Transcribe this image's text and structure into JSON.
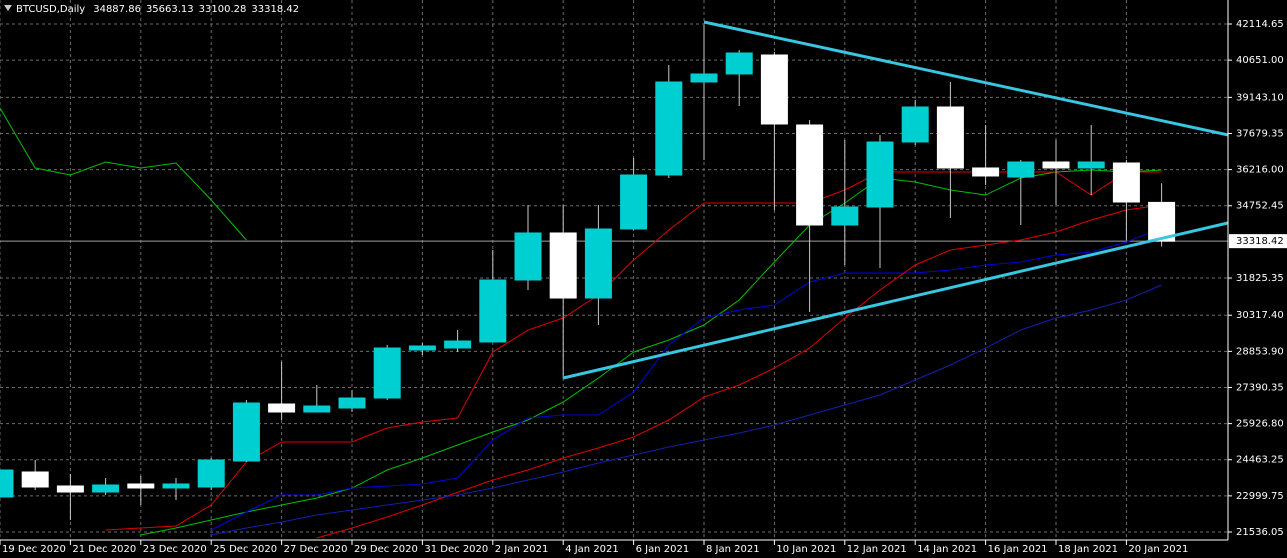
{
  "chart_data": {
    "type": "candlestick",
    "symbol": "BTCUSD,Daily",
    "header_values": [
      34887.86,
      35663.13,
      33100.28,
      33318.42
    ],
    "categories": [
      "19 Dec 2020",
      null,
      "21 Dec 2020",
      null,
      "23 Dec 2020",
      null,
      "25 Dec 2020",
      null,
      "27 Dec 2020",
      null,
      "29 Dec 2020",
      null,
      "31 Dec 2020",
      null,
      "2 Jan 2021",
      null,
      "4 Jan 2021",
      null,
      "6 Jan 2021",
      null,
      "8 Jan 2021",
      null,
      "10 Jan 2021",
      null,
      "12 Jan 2021",
      null,
      "14 Jan 2021",
      null,
      "16 Jan 2021",
      null,
      "18 Jan 2021",
      null,
      "20 Jan 2021",
      null
    ],
    "open": [
      22954,
      23967,
      23400,
      23156,
      23481,
      23319,
      23359,
      24412,
      26721,
      26397,
      26559,
      26964,
      28909,
      28990,
      29233,
      31745,
      33649,
      31015,
      33811,
      35998,
      39766,
      40090,
      40859,
      38024,
      33973,
      34702,
      37335,
      38753,
      36282,
      35917,
      36525,
      36282,
      36484,
      34887.86
    ],
    "high": [
      24048,
      24453,
      23886,
      23724,
      23805,
      23724,
      24534,
      26883,
      28423,
      27491,
      27288,
      29112,
      29192,
      29719,
      32960,
      34783,
      34783,
      34783,
      36687,
      40454,
      42075,
      41062,
      40980,
      38226,
      37416,
      37619,
      39036,
      39766,
      38024,
      36606,
      37416,
      38024,
      36606,
      35663.13
    ],
    "low": [
      22954,
      23238,
      22022,
      23035,
      22630,
      22832,
      23238,
      24372,
      26073,
      26397,
      26397,
      26883,
      28706,
      28828,
      29233,
      31340,
      27775,
      29922,
      33770,
      35876,
      36606,
      38793,
      34580,
      30448,
      32352,
      32231,
      37213,
      34256,
      35593,
      33973,
      34783,
      35188,
      33365,
      33100.28
    ],
    "close": [
      24048,
      23359,
      23156,
      23440,
      23319,
      23481,
      24453,
      26762,
      26397,
      26640,
      26964,
      28990,
      29071,
      29273,
      31745,
      33649,
      31015,
      33811,
      35998,
      39766,
      40090,
      40940,
      38064,
      33973,
      34702,
      37335,
      38753,
      36282,
      35958,
      36525,
      36282,
      36525,
      34904,
      33318.42
    ],
    "up_color": "#00cfd1",
    "down_color": "#ffffff",
    "wick_color": "#c8c8c8",
    "series": [
      {
        "color": "#00c000",
        "values": [
          38712,
          36281,
          35998,
          36524,
          36281,
          36484,
          34985,
          33365,
          null,
          null,
          null,
          null,
          null,
          null,
          null,
          null,
          null,
          null,
          null,
          null,
          null,
          null,
          null,
          null,
          null,
          null,
          null,
          null,
          null,
          null,
          null,
          null,
          null,
          null
        ]
      },
      {
        "color": "#00c000",
        "values": [
          null,
          null,
          null,
          null,
          21414,
          21698,
          22022,
          22346,
          22629,
          22913,
          23318,
          24047,
          24533,
          25060,
          25587,
          26073,
          26802,
          27774,
          28827,
          29313,
          29921,
          30934,
          32473,
          33972,
          34863,
          35876,
          35714,
          35390,
          35187,
          35876,
          36119,
          36200,
          36119,
          36200
        ]
      },
      {
        "color": "#e00000",
        "values": [
          null,
          null,
          null,
          21617,
          21698,
          21779,
          22629,
          24372,
          25182,
          25182,
          25182,
          25749,
          25992,
          26154,
          28827,
          29718,
          30205,
          31136,
          32554,
          33770,
          34863,
          34863,
          34863,
          34863,
          35390,
          36119,
          36119,
          36119,
          36119,
          36119,
          36119,
          35187,
          36119,
          36119
        ]
      },
      {
        "color": "#0000e0",
        "values": [
          null,
          null,
          null,
          null,
          null,
          null,
          21617,
          22346,
          23035,
          23035,
          23318,
          23399,
          23480,
          23724,
          25263,
          26154,
          26275,
          26275,
          27207,
          29111,
          30205,
          30529,
          30732,
          31663,
          32027,
          32027,
          32027,
          32149,
          32352,
          32473,
          32757,
          32879,
          33283,
          33851
        ]
      },
      {
        "color": "#e00000",
        "values": [
          null,
          null,
          null,
          null,
          null,
          null,
          null,
          null,
          null,
          21292,
          21698,
          22143,
          22629,
          23142,
          23642,
          24047,
          24533,
          24938,
          25384,
          26073,
          27004,
          27491,
          28178,
          28989,
          30205,
          31339,
          32352,
          32959,
          33162,
          33365,
          33689,
          34175,
          34581,
          34783
        ]
      },
      {
        "color": "#1020b0",
        "values": [
          null,
          null,
          null,
          null,
          null,
          null,
          21414,
          21698,
          21941,
          22225,
          22427,
          22629,
          22832,
          23035,
          23318,
          23642,
          23966,
          24331,
          24654,
          24978,
          25263,
          25546,
          25871,
          26275,
          26680,
          27086,
          27694,
          28301,
          28989,
          29718,
          30205,
          30529,
          30934,
          31542
        ]
      }
    ],
    "trendlines": [
      {
        "color": "#39c6e0",
        "x": [
          20,
          37
        ],
        "y": [
          42196,
          36970
        ]
      },
      {
        "color": "#39c6e0",
        "x": [
          16,
          35
        ],
        "y": [
          27774,
          34094
        ]
      }
    ],
    "last_price": 33318.42,
    "ylim": [
      21212,
      43087
    ],
    "yticks": [
      42114.65,
      {
        "value": 40651,
        "label": "40651.00"
      },
      {
        "value": 39143.1,
        "label": "39143.10"
      },
      37679.35,
      {
        "value": 36216,
        "label": "36216.00"
      },
      34752.45,
      31825.35,
      {
        "value": 30317.4,
        "label": "30317.40"
      },
      {
        "value": 28853.9,
        "label": "28853.90"
      },
      27390.35,
      {
        "value": 25926.8,
        "label": "25926.80"
      },
      24463.25,
      22999.75,
      21536.05
    ],
    "grid": true
  }
}
